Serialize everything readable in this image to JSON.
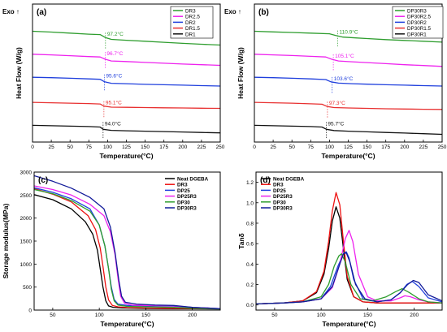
{
  "chart_data": [
    {
      "type": "line",
      "panel": "(a)",
      "exo": "Exo ↑",
      "xlabel": "Temperature(°C)",
      "ylabel": "Heat Flow (W/g)",
      "xlim": [
        0,
        250
      ],
      "xticks": [
        0,
        25,
        50,
        75,
        100,
        125,
        150,
        175,
        200,
        225,
        250
      ],
      "legend_position": "top-right",
      "series": [
        {
          "name": "DR3",
          "color": "#2e9d2e",
          "base": 5.0,
          "tg": 97.2,
          "label": "97.2°C",
          "label_color": "#2e9d2e",
          "x": [
            0,
            25,
            50,
            75,
            90,
            97,
            105,
            125,
            150,
            175,
            200,
            225,
            250
          ],
          "y": [
            5.0,
            4.96,
            4.91,
            4.86,
            4.84,
            4.7,
            4.61,
            4.57,
            4.52,
            4.47,
            4.42,
            4.38,
            4.34
          ]
        },
        {
          "name": "DR2.5",
          "color": "#ee22ee",
          "base": 3.9,
          "tg": 96.7,
          "label": "96.7°C",
          "label_color": "#ee22ee",
          "x": [
            0,
            25,
            50,
            75,
            90,
            97,
            105,
            125,
            150,
            175,
            200,
            225,
            250
          ],
          "y": [
            3.9,
            3.87,
            3.83,
            3.79,
            3.77,
            3.66,
            3.58,
            3.55,
            3.51,
            3.47,
            3.43,
            3.4,
            3.37
          ]
        },
        {
          "name": "DR2",
          "color": "#1f3fdd",
          "base": 2.8,
          "tg": 95.6,
          "label": "95.6°C",
          "label_color": "#1f3fdd",
          "x": [
            0,
            25,
            50,
            75,
            90,
            96,
            105,
            125,
            150,
            175,
            200,
            225,
            250
          ],
          "y": [
            2.8,
            2.78,
            2.75,
            2.72,
            2.7,
            2.58,
            2.51,
            2.49,
            2.46,
            2.44,
            2.42,
            2.4,
            2.38
          ]
        },
        {
          "name": "DR1.5",
          "color": "#e83030",
          "base": 1.6,
          "tg": 95.1,
          "label": "95.1°C",
          "label_color": "#e83030",
          "x": [
            0,
            25,
            50,
            75,
            90,
            95,
            105,
            125,
            150,
            175,
            200,
            225,
            250
          ],
          "y": [
            1.6,
            1.58,
            1.56,
            1.54,
            1.52,
            1.42,
            1.37,
            1.36,
            1.35,
            1.34,
            1.33,
            1.32,
            1.31
          ]
        },
        {
          "name": "DR1",
          "color": "#111111",
          "base": 0.5,
          "tg": 94.0,
          "label": "94.0°C",
          "label_color": "#111111",
          "x": [
            0,
            25,
            50,
            75,
            90,
            94,
            105,
            125,
            150,
            175,
            200,
            225,
            250
          ],
          "y": [
            0.5,
            0.48,
            0.46,
            0.44,
            0.42,
            0.31,
            0.26,
            0.24,
            0.22,
            0.2,
            0.18,
            0.16,
            0.14
          ]
        }
      ]
    },
    {
      "type": "line",
      "panel": "(b)",
      "exo": "Exo ↑",
      "xlabel": "Temperature(°C)",
      "ylabel": "Heat Flow (W/g)",
      "xlim": [
        0,
        250
      ],
      "xticks": [
        0,
        25,
        50,
        75,
        100,
        125,
        150,
        175,
        200,
        225,
        250
      ],
      "legend_position": "top-right",
      "series": [
        {
          "name": "DP30R3",
          "color": "#2e9d2e",
          "tg": 110.9,
          "label": "110.9°C",
          "label_color": "#2e9d2e",
          "x": [
            0,
            25,
            50,
            75,
            100,
            108,
            118,
            135,
            150,
            175,
            200,
            225,
            250
          ],
          "y": [
            5.0,
            4.97,
            4.94,
            4.91,
            4.88,
            4.8,
            4.72,
            4.68,
            4.65,
            4.6,
            4.56,
            4.52,
            4.48
          ]
        },
        {
          "name": "DP30R2.5",
          "color": "#ee22ee",
          "tg": 105.1,
          "label": "105.1°C",
          "label_color": "#ee22ee",
          "x": [
            0,
            25,
            50,
            75,
            95,
            103,
            112,
            130,
            150,
            175,
            200,
            225,
            250
          ],
          "y": [
            3.9,
            3.87,
            3.84,
            3.8,
            3.77,
            3.66,
            3.58,
            3.54,
            3.5,
            3.45,
            3.4,
            3.36,
            3.32
          ]
        },
        {
          "name": "DP30R2",
          "color": "#1f3fdd",
          "tg": 103.6,
          "label": "103.6°C",
          "label_color": "#1f3fdd",
          "x": [
            0,
            25,
            50,
            75,
            95,
            102,
            112,
            130,
            150,
            175,
            200,
            225,
            250
          ],
          "y": [
            2.8,
            2.78,
            2.75,
            2.72,
            2.69,
            2.58,
            2.52,
            2.49,
            2.47,
            2.44,
            2.42,
            2.4,
            2.38
          ]
        },
        {
          "name": "DP30R1.5",
          "color": "#e83030",
          "tg": 97.3,
          "label": "97.3°C",
          "label_color": "#e83030",
          "x": [
            0,
            25,
            50,
            75,
            90,
            97,
            106,
            125,
            150,
            175,
            200,
            225,
            250
          ],
          "y": [
            1.6,
            1.58,
            1.56,
            1.53,
            1.51,
            1.4,
            1.35,
            1.33,
            1.31,
            1.29,
            1.28,
            1.27,
            1.26
          ]
        },
        {
          "name": "DP30R1",
          "color": "#111111",
          "tg": 95.7,
          "label": "95.7°C",
          "label_color": "#111111",
          "x": [
            0,
            25,
            50,
            75,
            90,
            96,
            106,
            125,
            150,
            175,
            200,
            225,
            250
          ],
          "y": [
            0.5,
            0.48,
            0.46,
            0.44,
            0.42,
            0.31,
            0.25,
            0.22,
            0.19,
            0.16,
            0.13,
            0.1,
            0.07
          ]
        }
      ]
    },
    {
      "type": "line",
      "panel": "(c)",
      "xlabel": "Temperature(°C)",
      "ylabel": "Storage modulus(MPa)",
      "xlim": [
        30,
        230
      ],
      "ylim": [
        0,
        3000
      ],
      "xticks": [
        50,
        100,
        150,
        200
      ],
      "yticks": [
        0,
        500,
        1000,
        1500,
        2000,
        2500,
        3000
      ],
      "legend_position": "top-right",
      "series": [
        {
          "name": "Neat DGEBA",
          "color": "#000000",
          "x": [
            30,
            50,
            70,
            85,
            93,
            98,
            101,
            104,
            107,
            110,
            115,
            125,
            150,
            180,
            200,
            230
          ],
          "y": [
            2510,
            2400,
            2200,
            1920,
            1650,
            1300,
            900,
            500,
            200,
            90,
            60,
            45,
            35,
            30,
            28,
            25
          ]
        },
        {
          "name": "DR3",
          "color": "#ee1111",
          "x": [
            30,
            50,
            70,
            88,
            96,
            101,
            104,
            107,
            110,
            114,
            120,
            130,
            150,
            180,
            200,
            230
          ],
          "y": [
            2640,
            2520,
            2350,
            2050,
            1750,
            1350,
            950,
            500,
            220,
            100,
            70,
            55,
            45,
            38,
            34,
            30
          ]
        },
        {
          "name": "DP25",
          "color": "#1f3fdd",
          "x": [
            30,
            50,
            70,
            90,
            100,
            106,
            110,
            113,
            116,
            120,
            130,
            150,
            180,
            200,
            230
          ],
          "y": [
            2660,
            2560,
            2420,
            2200,
            1850,
            1400,
            900,
            500,
            230,
            130,
            100,
            90,
            85,
            60,
            30
          ]
        },
        {
          "name": "DP25R3",
          "color": "#ee22ee",
          "x": [
            30,
            50,
            70,
            90,
            105,
            112,
            117,
            120,
            123,
            127,
            135,
            150,
            180,
            200,
            230
          ],
          "y": [
            2700,
            2620,
            2500,
            2300,
            2050,
            1700,
            1200,
            700,
            300,
            150,
            110,
            100,
            90,
            60,
            30
          ]
        },
        {
          "name": "DP30",
          "color": "#2e9d2e",
          "x": [
            30,
            50,
            70,
            90,
            100,
            106,
            110,
            113,
            116,
            120,
            130,
            150,
            180,
            200,
            230
          ],
          "y": [
            2620,
            2530,
            2380,
            2150,
            1850,
            1400,
            900,
            450,
            200,
            110,
            80,
            70,
            60,
            40,
            25
          ]
        },
        {
          "name": "DP30R3",
          "color": "#111a99",
          "x": [
            30,
            50,
            70,
            90,
            105,
            112,
            117,
            121,
            124,
            128,
            140,
            160,
            180,
            200,
            230
          ],
          "y": [
            2920,
            2800,
            2650,
            2450,
            2200,
            1800,
            1250,
            650,
            300,
            170,
            130,
            110,
            100,
            60,
            30
          ]
        }
      ]
    },
    {
      "type": "line",
      "panel": "(d)",
      "xlabel": "Temperature(°C)",
      "ylabel": "Tanδ",
      "xlim": [
        30,
        230
      ],
      "ylim": [
        -0.05,
        1.3
      ],
      "xticks": [
        50,
        100,
        150,
        200
      ],
      "yticks": [
        0.0,
        0.2,
        0.4,
        0.6,
        0.8,
        1.0,
        1.2
      ],
      "legend_position": "top-left",
      "series": [
        {
          "name": "Neat DGEBA",
          "color": "#000000",
          "x": [
            30,
            60,
            80,
            95,
            103,
            108,
            112,
            116,
            120,
            124,
            128,
            135,
            145,
            160,
            190,
            230
          ],
          "y": [
            0.01,
            0.02,
            0.04,
            0.12,
            0.3,
            0.55,
            0.82,
            0.96,
            0.85,
            0.55,
            0.25,
            0.08,
            0.03,
            0.02,
            0.02,
            0.02
          ]
        },
        {
          "name": "DR3",
          "color": "#ee1111",
          "x": [
            30,
            60,
            80,
            95,
            103,
            108,
            112,
            116,
            120,
            124,
            128,
            135,
            145,
            160,
            190,
            230
          ],
          "y": [
            0.01,
            0.02,
            0.04,
            0.13,
            0.33,
            0.62,
            0.92,
            1.1,
            0.98,
            0.62,
            0.28,
            0.08,
            0.03,
            0.02,
            0.02,
            0.02
          ]
        },
        {
          "name": "DP25",
          "color": "#1f3fdd",
          "x": [
            30,
            60,
            80,
            100,
            110,
            118,
            124,
            127,
            130,
            135,
            145,
            160,
            175,
            185,
            192,
            198,
            205,
            215,
            230
          ],
          "y": [
            0.01,
            0.02,
            0.03,
            0.06,
            0.18,
            0.38,
            0.5,
            0.52,
            0.46,
            0.25,
            0.06,
            0.03,
            0.05,
            0.12,
            0.2,
            0.23,
            0.18,
            0.07,
            0.03
          ]
        },
        {
          "name": "DP25R3",
          "color": "#ee22ee",
          "x": [
            30,
            60,
            80,
            100,
            112,
            120,
            126,
            130,
            134,
            140,
            150,
            160,
            175,
            185,
            190,
            196,
            205,
            215,
            230
          ],
          "y": [
            0.01,
            0.02,
            0.03,
            0.06,
            0.17,
            0.4,
            0.65,
            0.73,
            0.62,
            0.3,
            0.08,
            0.04,
            0.04,
            0.07,
            0.09,
            0.08,
            0.05,
            0.03,
            0.02
          ]
        },
        {
          "name": "DP30",
          "color": "#2e9d2e",
          "x": [
            30,
            60,
            80,
            100,
            108,
            114,
            119,
            122,
            126,
            132,
            142,
            155,
            170,
            180,
            187,
            195,
            205,
            215,
            230
          ],
          "y": [
            0.01,
            0.02,
            0.03,
            0.08,
            0.2,
            0.38,
            0.48,
            0.5,
            0.42,
            0.2,
            0.06,
            0.04,
            0.08,
            0.13,
            0.16,
            0.12,
            0.06,
            0.03,
            0.02
          ]
        },
        {
          "name": "DP30R3",
          "color": "#111a99",
          "x": [
            30,
            60,
            80,
            100,
            112,
            120,
            124,
            127,
            131,
            137,
            147,
            160,
            175,
            185,
            193,
            199,
            205,
            215,
            230
          ],
          "y": [
            0.01,
            0.02,
            0.03,
            0.06,
            0.18,
            0.4,
            0.5,
            0.51,
            0.42,
            0.2,
            0.06,
            0.03,
            0.05,
            0.12,
            0.2,
            0.24,
            0.22,
            0.1,
            0.04
          ]
        }
      ]
    }
  ]
}
